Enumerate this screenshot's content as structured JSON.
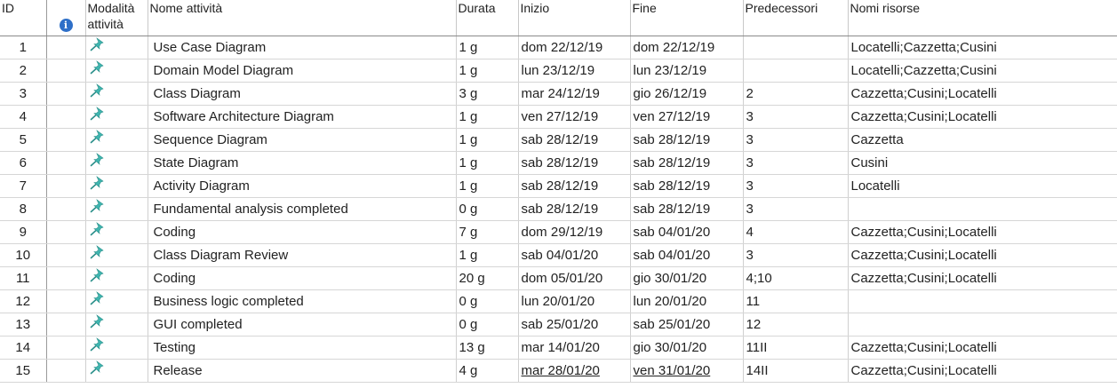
{
  "columns": {
    "id": "ID",
    "info_icon": "info-icon",
    "mode_line1": "Modalità",
    "mode_line2": "attività",
    "name": "Nome attività",
    "duration": "Durata",
    "start": "Inizio",
    "finish": "Fine",
    "predecessors": "Predecessori",
    "resources": "Nomi risorse"
  },
  "mode_icon": "pin-icon",
  "colors": {
    "pin": "#3fb6b0",
    "info": "#2e6fc8",
    "grid_line": "#d0d0d0"
  },
  "rows": [
    {
      "id": "1",
      "name": "Use Case Diagram",
      "duration": "1 g",
      "start": "dom 22/12/19",
      "finish": "dom 22/12/19",
      "predecessors": "",
      "resources": "Locatelli;Cazzetta;Cusini"
    },
    {
      "id": "2",
      "name": "Domain Model Diagram",
      "duration": "1 g",
      "start": "lun 23/12/19",
      "finish": "lun 23/12/19",
      "predecessors": "",
      "resources": "Locatelli;Cazzetta;Cusini"
    },
    {
      "id": "3",
      "name": "Class Diagram",
      "duration": "3 g",
      "start": "mar 24/12/19",
      "finish": "gio 26/12/19",
      "predecessors": "2",
      "resources": "Cazzetta;Cusini;Locatelli"
    },
    {
      "id": "4",
      "name": "Software Architecture Diagram",
      "duration": "1 g",
      "start": "ven 27/12/19",
      "finish": "ven 27/12/19",
      "predecessors": "3",
      "resources": "Cazzetta;Cusini;Locatelli"
    },
    {
      "id": "5",
      "name": "Sequence Diagram",
      "duration": "1 g",
      "start": "sab 28/12/19",
      "finish": "sab 28/12/19",
      "predecessors": "3",
      "resources": "Cazzetta"
    },
    {
      "id": "6",
      "name": "State Diagram",
      "duration": "1 g",
      "start": "sab 28/12/19",
      "finish": "sab 28/12/19",
      "predecessors": "3",
      "resources": "Cusini"
    },
    {
      "id": "7",
      "name": "Activity Diagram",
      "duration": "1 g",
      "start": "sab 28/12/19",
      "finish": "sab 28/12/19",
      "predecessors": "3",
      "resources": "Locatelli"
    },
    {
      "id": "8",
      "name": "Fundamental analysis completed",
      "duration": "0 g",
      "start": "sab 28/12/19",
      "finish": "sab 28/12/19",
      "predecessors": "3",
      "resources": ""
    },
    {
      "id": "9",
      "name": "Coding",
      "duration": "7 g",
      "start": "dom 29/12/19",
      "finish": "sab 04/01/20",
      "predecessors": "4",
      "resources": "Cazzetta;Cusini;Locatelli"
    },
    {
      "id": "10",
      "name": "Class Diagram Review",
      "duration": "1 g",
      "start": "sab 04/01/20",
      "finish": "sab 04/01/20",
      "predecessors": "3",
      "resources": "Cazzetta;Cusini;Locatelli"
    },
    {
      "id": "11",
      "name": "Coding",
      "duration": "20 g",
      "start": "dom 05/01/20",
      "finish": "gio 30/01/20",
      "predecessors": "4;10",
      "resources": "Cazzetta;Cusini;Locatelli"
    },
    {
      "id": "12",
      "name": "Business logic completed",
      "duration": "0 g",
      "start": "lun 20/01/20",
      "finish": "lun 20/01/20",
      "predecessors": "11",
      "resources": ""
    },
    {
      "id": "13",
      "name": "GUI completed",
      "duration": "0 g",
      "start": "sab 25/01/20",
      "finish": "sab 25/01/20",
      "predecessors": "12",
      "resources": ""
    },
    {
      "id": "14",
      "name": "Testing",
      "duration": "13 g",
      "start": "mar 14/01/20",
      "finish": "gio 30/01/20",
      "predecessors": "11II",
      "resources": "Cazzetta;Cusini;Locatelli"
    },
    {
      "id": "15",
      "name": "Release",
      "duration": "4 g",
      "start": "mar 28/01/20",
      "finish": "ven 31/01/20",
      "predecessors": "14II",
      "resources": "Cazzetta;Cusini;Locatelli"
    }
  ]
}
